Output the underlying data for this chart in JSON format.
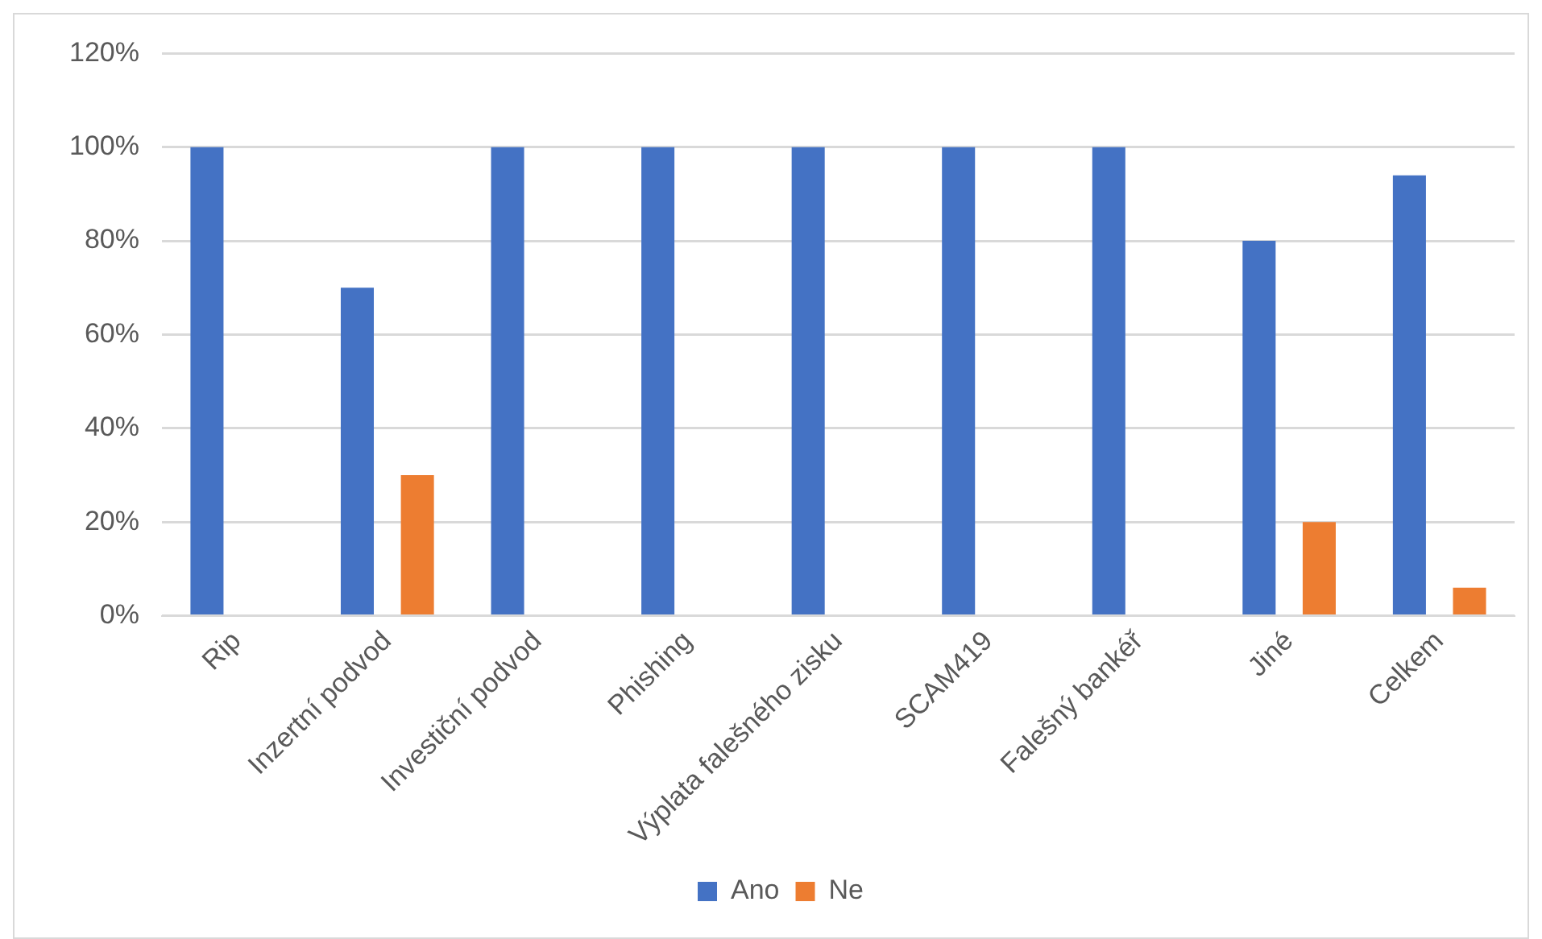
{
  "chart_data": {
    "type": "bar",
    "categories": [
      "Rip",
      "Inzertní podvod",
      "Investiční podvod",
      "Phishing",
      "Výplata falešného zisku",
      "SCAM419",
      "Falešný bankéř",
      "Jiné",
      "Celkem"
    ],
    "series": [
      {
        "name": "Ano",
        "color": "#4472c4",
        "values": [
          100,
          70,
          100,
          100,
          100,
          100,
          100,
          80,
          94
        ]
      },
      {
        "name": "Ne",
        "color": "#ed7d31",
        "values": [
          0,
          30,
          0,
          0,
          0,
          0,
          0,
          20,
          6
        ]
      }
    ],
    "ylim": [
      0,
      120
    ],
    "yticks": [
      {
        "value": 0,
        "label": "0%"
      },
      {
        "value": 20,
        "label": "20%"
      },
      {
        "value": 40,
        "label": "40%"
      },
      {
        "value": 60,
        "label": "60%"
      },
      {
        "value": 80,
        "label": "80%"
      },
      {
        "value": 100,
        "label": "100%"
      },
      {
        "value": 120,
        "label": "120%"
      }
    ],
    "grid": "y",
    "legend": "bottom"
  }
}
